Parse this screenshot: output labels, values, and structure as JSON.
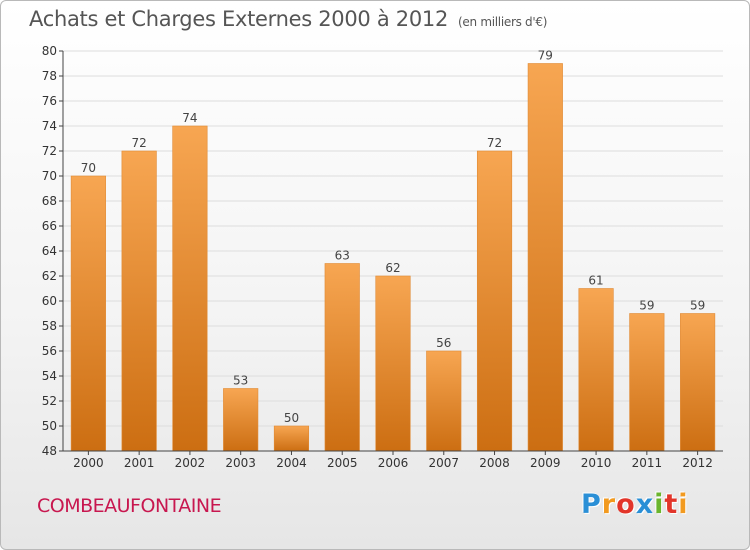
{
  "title": "Achats et Charges Externes 2000 à 2012",
  "unit_label": "(en milliers d'€)",
  "commune": "COMBEAUFONTAINE",
  "logo": {
    "letters": [
      "P",
      "r",
      "o",
      "x",
      "i",
      "t",
      "i"
    ],
    "colors": [
      "#2a8fd6",
      "#f29a1f",
      "#e2352a",
      "#2a8fd6",
      "#6bb52d",
      "#e2352a",
      "#f29a1f"
    ]
  },
  "colors": {
    "bar_top": "#f7a652",
    "bar_bottom": "#cc6e12",
    "axis": "#444444",
    "grid": "#dddddd"
  },
  "chart_data": {
    "type": "bar",
    "title": "Achats et Charges Externes 2000 à 2012",
    "xlabel": "",
    "ylabel": "",
    "ylim": [
      48,
      80
    ],
    "yticks": [
      48,
      50,
      52,
      54,
      56,
      58,
      60,
      62,
      64,
      66,
      68,
      70,
      72,
      74,
      76,
      78,
      80
    ],
    "categories": [
      "2000",
      "2001",
      "2002",
      "2003",
      "2004",
      "2005",
      "2006",
      "2007",
      "2008",
      "2009",
      "2010",
      "2011",
      "2012"
    ],
    "values": [
      70,
      72,
      74,
      53,
      50,
      63,
      62,
      56,
      72,
      79,
      61,
      59,
      59
    ],
    "grid": true,
    "legend": "none"
  }
}
